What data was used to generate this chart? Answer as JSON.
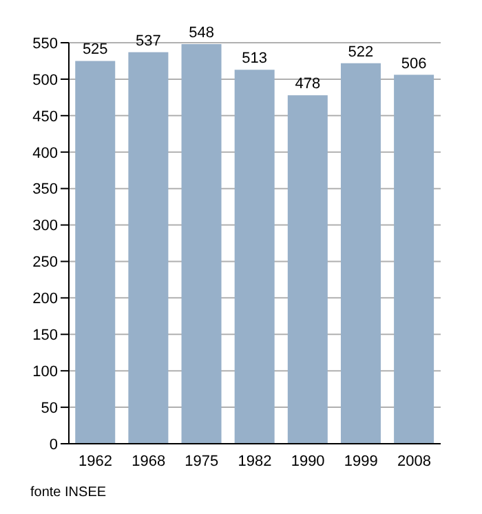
{
  "chart_data": {
    "type": "bar",
    "categories": [
      "1962",
      "1968",
      "1975",
      "1982",
      "1990",
      "1999",
      "2008"
    ],
    "values": [
      525,
      537,
      548,
      513,
      478,
      522,
      506
    ],
    "color": "#97b0c9",
    "data_labels": true,
    "ylim": [
      0,
      550
    ],
    "yticks": [
      0,
      50,
      100,
      150,
      200,
      250,
      300,
      350,
      400,
      450,
      500,
      550
    ],
    "grid": "y",
    "annotations": [
      "fonte INSEE"
    ]
  }
}
